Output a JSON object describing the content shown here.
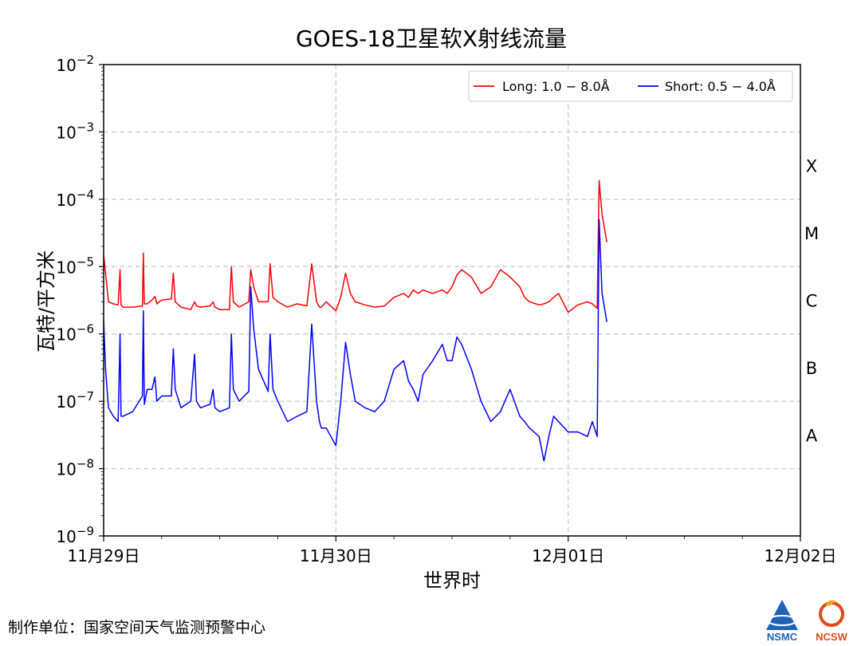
{
  "chart_data": {
    "type": "line",
    "title": "GOES-18卫星软X射线流量",
    "xlabel": "世界时",
    "ylabel": "瓦特/平方米",
    "yscale": "log",
    "ylim": [
      1e-09,
      0.01
    ],
    "xlim": [
      0,
      72
    ],
    "x_unit": "hours since 11月29日 00:00 UT",
    "x_ticks": [
      {
        "x": 0,
        "label": "11月29日"
      },
      {
        "x": 24,
        "label": "11月30日"
      },
      {
        "x": 48,
        "label": "12月01日"
      },
      {
        "x": 72,
        "label": "12月02日"
      }
    ],
    "y_ticks": [
      {
        "exp": -9,
        "label": "10",
        "sup": "−9"
      },
      {
        "exp": -8,
        "label": "10",
        "sup": "−8"
      },
      {
        "exp": -7,
        "label": "10",
        "sup": "−7"
      },
      {
        "exp": -6,
        "label": "10",
        "sup": "−6"
      },
      {
        "exp": -5,
        "label": "10",
        "sup": "−5"
      },
      {
        "exp": -4,
        "label": "10",
        "sup": "−4"
      },
      {
        "exp": -3,
        "label": "10",
        "sup": "−3"
      },
      {
        "exp": -2,
        "label": "10",
        "sup": "−2"
      }
    ],
    "flare_classes": [
      {
        "label": "X",
        "exp": -3.5
      },
      {
        "label": "M",
        "exp": -4.5
      },
      {
        "label": "C",
        "exp": -5.5
      },
      {
        "label": "B",
        "exp": -6.5
      },
      {
        "label": "A",
        "exp": -7.5
      }
    ],
    "grid": true,
    "legend_position": "top-right",
    "series": [
      {
        "name": "Long: 1.0 − 8.0Å",
        "color": "#ff0000",
        "x": [
          0,
          0.2,
          0.5,
          1,
          1.5,
          1.7,
          1.8,
          2,
          3,
          4,
          4.1,
          4.2,
          4.5,
          5,
          5.3,
          5.5,
          6,
          7,
          7.2,
          7.4,
          8,
          9,
          9.4,
          9.6,
          10,
          11,
          11.3,
          11.5,
          12,
          13,
          13.2,
          13.4,
          14,
          15,
          15.2,
          15.5,
          16,
          17,
          17.2,
          17.5,
          18,
          19,
          20,
          21,
          21.5,
          22,
          22.3,
          22.5,
          23,
          24,
          24.5,
          25,
          25.5,
          26,
          27,
          28,
          29,
          30,
          31,
          31.5,
          32,
          32.5,
          33,
          34,
          35,
          35.5,
          36,
          36.5,
          37,
          38,
          39,
          40,
          41,
          42,
          43,
          43.5,
          44,
          45,
          45.5,
          46,
          46.5,
          47,
          48,
          49,
          50,
          50.5,
          51,
          51.2,
          51.5,
          52
        ],
        "y": [
          1.5e-05,
          8e-06,
          3e-06,
          2.8e-06,
          2.7e-06,
          9e-06,
          2.7e-06,
          2.5e-06,
          2.5e-06,
          2.6e-06,
          1.6e-05,
          2.8e-06,
          2.8e-06,
          3.2e-06,
          3.6e-06,
          2.8e-06,
          3.2e-06,
          3.3e-06,
          8e-06,
          3e-06,
          2.5e-06,
          2.3e-06,
          3e-06,
          2.6e-06,
          2.5e-06,
          2.6e-06,
          3e-06,
          2.5e-06,
          2.3e-06,
          2.3e-06,
          1e-05,
          3e-06,
          2.5e-06,
          3e-06,
          9e-06,
          5e-06,
          3e-06,
          3e-06,
          1.1e-05,
          3.5e-06,
          3e-06,
          2.5e-06,
          2.8e-06,
          2.6e-06,
          1.1e-05,
          3e-06,
          2.5e-06,
          2.5e-06,
          3e-06,
          2.2e-06,
          3.5e-06,
          8e-06,
          4e-06,
          3e-06,
          2.7e-06,
          2.5e-06,
          2.6e-06,
          3.5e-06,
          4e-06,
          3.5e-06,
          4.5e-06,
          4e-06,
          4.5e-06,
          4e-06,
          4.5e-06,
          4e-06,
          5e-06,
          7.5e-06,
          9e-06,
          7e-06,
          4e-06,
          5e-06,
          9e-06,
          7e-06,
          5e-06,
          3.5e-06,
          3e-06,
          2.7e-06,
          2.8e-06,
          3e-06,
          3.5e-06,
          4e-06,
          2.1e-06,
          2.7e-06,
          3e-06,
          2.8e-06,
          2.4e-06,
          0.00019,
          6e-05,
          2.3e-05
        ]
      },
      {
        "name": "Short: 0.5 − 4.0Å",
        "color": "#0000ff",
        "x": [
          0,
          0.2,
          0.5,
          1,
          1.5,
          1.7,
          1.8,
          2,
          3,
          4,
          4.1,
          4.2,
          4.5,
          5,
          5.3,
          5.5,
          6,
          7,
          7.2,
          7.4,
          8,
          9,
          9.4,
          9.6,
          10,
          11,
          11.3,
          11.5,
          12,
          13,
          13.2,
          13.4,
          14,
          15,
          15.2,
          15.5,
          16,
          17,
          17.2,
          17.5,
          18,
          19,
          20,
          21,
          21.5,
          22,
          22.3,
          22.5,
          23,
          24,
          24.5,
          25,
          25.5,
          26,
          27,
          28,
          29,
          30,
          31,
          31.5,
          32,
          32.5,
          33,
          34,
          35,
          35.5,
          36,
          36.5,
          37,
          38,
          39,
          40,
          41,
          42,
          43,
          43.5,
          44,
          45,
          45.5,
          46,
          46.5,
          47,
          48,
          49,
          50,
          50.5,
          51,
          51.2,
          51.5,
          52
        ],
        "y": [
          1.6e-06,
          3e-07,
          8e-08,
          6e-08,
          5e-08,
          1e-06,
          6e-08,
          6e-08,
          7e-08,
          1.2e-07,
          2.2e-06,
          9e-08,
          1.5e-07,
          1.5e-07,
          2.3e-07,
          1e-07,
          1.2e-07,
          1.2e-07,
          6e-07,
          1.5e-07,
          8e-08,
          1e-07,
          5e-07,
          1e-07,
          8e-08,
          9e-08,
          1.5e-07,
          8e-08,
          7e-08,
          8e-08,
          1e-06,
          1.5e-07,
          1e-07,
          1.4e-07,
          5e-06,
          1.2e-06,
          3e-07,
          1.4e-07,
          1e-06,
          1.5e-07,
          1e-07,
          5e-08,
          6e-08,
          7e-08,
          1.4e-06,
          1e-07,
          5e-08,
          4e-08,
          4e-08,
          2.2e-08,
          1e-07,
          7.5e-07,
          2.5e-07,
          1e-07,
          8e-08,
          7e-08,
          1e-07,
          3e-07,
          4e-07,
          2e-07,
          1.5e-07,
          1e-07,
          2.5e-07,
          4e-07,
          7e-07,
          4e-07,
          4e-07,
          9e-07,
          7e-07,
          3e-07,
          1e-07,
          5e-08,
          7e-08,
          1.5e-07,
          6e-08,
          5e-08,
          4e-08,
          3e-08,
          1.3e-08,
          3e-08,
          6e-08,
          5e-08,
          3.5e-08,
          3.5e-08,
          3e-08,
          5e-08,
          3e-08,
          5e-05,
          4e-06,
          1.5e-06
        ]
      }
    ]
  },
  "footer": {
    "organization": "制作单位：国家空间天气监测预警中心",
    "logo1": "NSMC",
    "logo2": "NCSW"
  }
}
